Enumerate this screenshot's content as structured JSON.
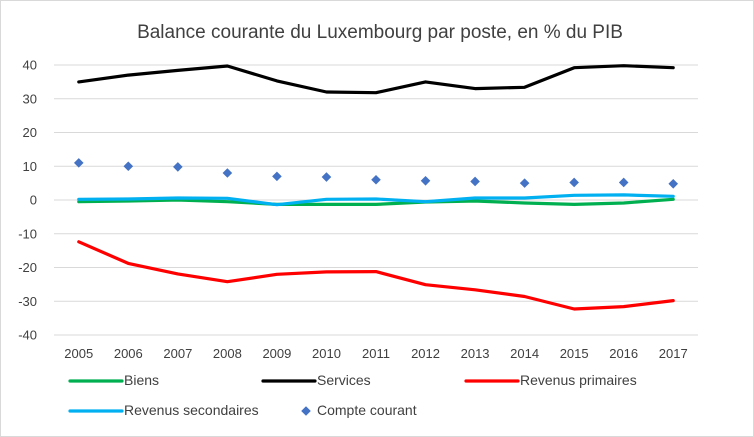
{
  "chart_data": {
    "type": "line",
    "title": "Balance courante du Luxembourg par poste, en % du PIB",
    "categories": [
      "2005",
      "2006",
      "2007",
      "2008",
      "2009",
      "2010",
      "2011",
      "2012",
      "2013",
      "2014",
      "2015",
      "2016",
      "2017"
    ],
    "y_ticks": [
      "40",
      "30",
      "20",
      "10",
      "0",
      "-10",
      "-20",
      "-30",
      "-40"
    ],
    "ylim": [
      -40,
      40
    ],
    "grid": true,
    "legend_position": "bottom",
    "series": [
      {
        "name": "Biens",
        "style": "line",
        "color": "#00b050",
        "values": [
          -0.5,
          -0.3,
          0.0,
          -0.5,
          -1.3,
          -1.3,
          -1.3,
          -0.6,
          -0.3,
          -0.9,
          -1.3,
          -0.9,
          0.2
        ]
      },
      {
        "name": "Services",
        "style": "line",
        "color": "#000000",
        "values": [
          35.0,
          37.0,
          38.4,
          39.7,
          35.3,
          32.0,
          31.8,
          35.0,
          33.0,
          33.4,
          39.2,
          39.8,
          39.2
        ]
      },
      {
        "name": "Revenus primaires",
        "style": "line",
        "color": "#ff0000",
        "values": [
          -12.4,
          -18.8,
          -21.9,
          -24.2,
          -22.0,
          -21.3,
          -21.2,
          -25.1,
          -26.6,
          -28.6,
          -32.3,
          -31.6,
          -29.8
        ]
      },
      {
        "name": "Revenus secondaires",
        "style": "line",
        "color": "#00b0f0",
        "values": [
          0.2,
          0.3,
          0.6,
          0.5,
          -1.4,
          0.2,
          0.3,
          -0.5,
          0.6,
          0.6,
          1.4,
          1.5,
          1.1
        ]
      },
      {
        "name": "Compte courant",
        "style": "marker",
        "color": "#4472c4",
        "values": [
          11.0,
          10.0,
          9.8,
          8.0,
          7.0,
          6.8,
          6.0,
          5.7,
          5.5,
          5.0,
          5.2,
          5.2,
          4.8
        ]
      }
    ]
  }
}
